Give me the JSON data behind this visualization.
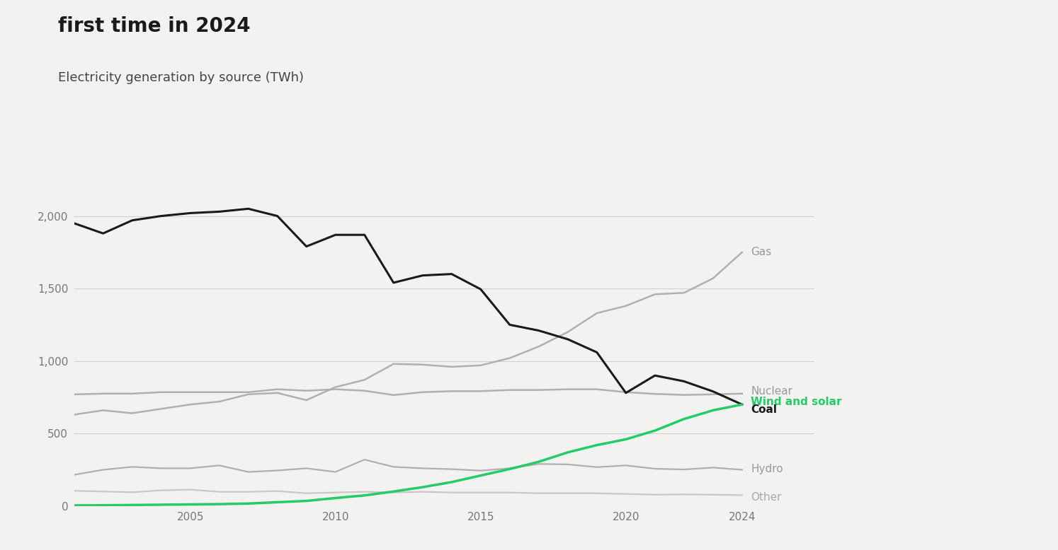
{
  "title": "first time in 2024",
  "subtitle": "Electricity generation by source (TWh)",
  "background_color": "#f2f2f0",
  "years": [
    2001,
    2002,
    2003,
    2004,
    2005,
    2006,
    2007,
    2008,
    2009,
    2010,
    2011,
    2012,
    2013,
    2014,
    2015,
    2016,
    2017,
    2018,
    2019,
    2020,
    2021,
    2022,
    2023,
    2024
  ],
  "coal": [
    1950,
    1880,
    1970,
    2000,
    2020,
    2030,
    2050,
    2000,
    1790,
    1870,
    1870,
    1540,
    1590,
    1600,
    1495,
    1250,
    1210,
    1150,
    1060,
    780,
    900,
    860,
    790,
    700
  ],
  "gas": [
    630,
    660,
    640,
    670,
    700,
    720,
    770,
    780,
    730,
    820,
    870,
    980,
    975,
    960,
    970,
    1020,
    1100,
    1200,
    1330,
    1380,
    1460,
    1470,
    1570,
    1750
  ],
  "nuclear": [
    770,
    775,
    775,
    785,
    785,
    785,
    785,
    805,
    795,
    805,
    795,
    765,
    785,
    792,
    792,
    800,
    800,
    805,
    805,
    785,
    773,
    766,
    770,
    775
  ],
  "hydro": [
    215,
    250,
    270,
    260,
    260,
    280,
    235,
    245,
    260,
    235,
    320,
    270,
    260,
    254,
    244,
    260,
    290,
    287,
    268,
    280,
    257,
    252,
    265,
    250
  ],
  "other": [
    105,
    100,
    95,
    108,
    113,
    98,
    98,
    103,
    88,
    93,
    98,
    93,
    98,
    93,
    93,
    93,
    88,
    88,
    88,
    83,
    78,
    80,
    78,
    75
  ],
  "wind_solar": [
    4,
    5,
    7,
    9,
    11,
    13,
    17,
    26,
    35,
    55,
    73,
    100,
    130,
    165,
    210,
    255,
    305,
    370,
    420,
    460,
    520,
    600,
    660,
    700
  ],
  "colors": {
    "coal": "#1a1a1a",
    "gas": "#b0b0b0",
    "nuclear": "#b0b0b0",
    "hydro": "#b0b0b0",
    "other": "#c8c8c8",
    "wind_solar": "#22cc66"
  },
  "label_colors": {
    "gas": "#999999",
    "nuclear": "#999999",
    "hydro": "#999999",
    "other": "#aaaaaa",
    "wind_solar": "#22cc66",
    "coal": "#1a1a1a"
  },
  "ylim": [
    0,
    2200
  ],
  "yticks": [
    0,
    500,
    1000,
    1500,
    2000
  ],
  "xlim_start": 2001,
  "xlim_end": 2024,
  "xticks": [
    2005,
    2010,
    2015,
    2020,
    2024
  ]
}
